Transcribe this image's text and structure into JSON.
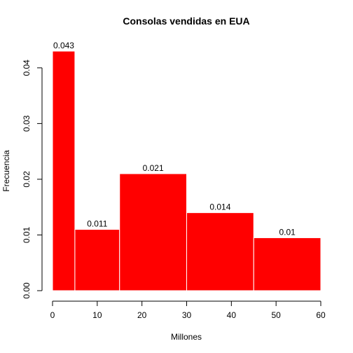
{
  "chart_data": {
    "type": "bar",
    "subtype": "histogram",
    "title": "Consolas vendidas en EUA",
    "xlabel": "Millones",
    "ylabel": "Frecuencia",
    "bins": [
      {
        "start": 0,
        "end": 5,
        "value": 0.043,
        "label": "0.043"
      },
      {
        "start": 5,
        "end": 15,
        "value": 0.011,
        "label": "0.011"
      },
      {
        "start": 15,
        "end": 30,
        "value": 0.021,
        "label": "0.021"
      },
      {
        "start": 30,
        "end": 45,
        "value": 0.014,
        "label": "0.014"
      },
      {
        "start": 45,
        "end": 60,
        "value": 0.0095,
        "label": "0.01"
      }
    ],
    "xlim": [
      0,
      60
    ],
    "ylim": [
      0,
      0.043
    ],
    "xticks": [
      0,
      10,
      20,
      30,
      40,
      50,
      60
    ],
    "xtick_labels": [
      "0",
      "10",
      "20",
      "30",
      "40",
      "50",
      "60"
    ],
    "yticks": [
      0,
      0.01,
      0.02,
      0.03,
      0.04
    ],
    "ytick_labels": [
      "0.00",
      "0.01",
      "0.02",
      "0.03",
      "0.04"
    ],
    "bar_color": "#ff0000",
    "bar_border_color": "#ffffff",
    "grid": false,
    "legend": "none"
  }
}
